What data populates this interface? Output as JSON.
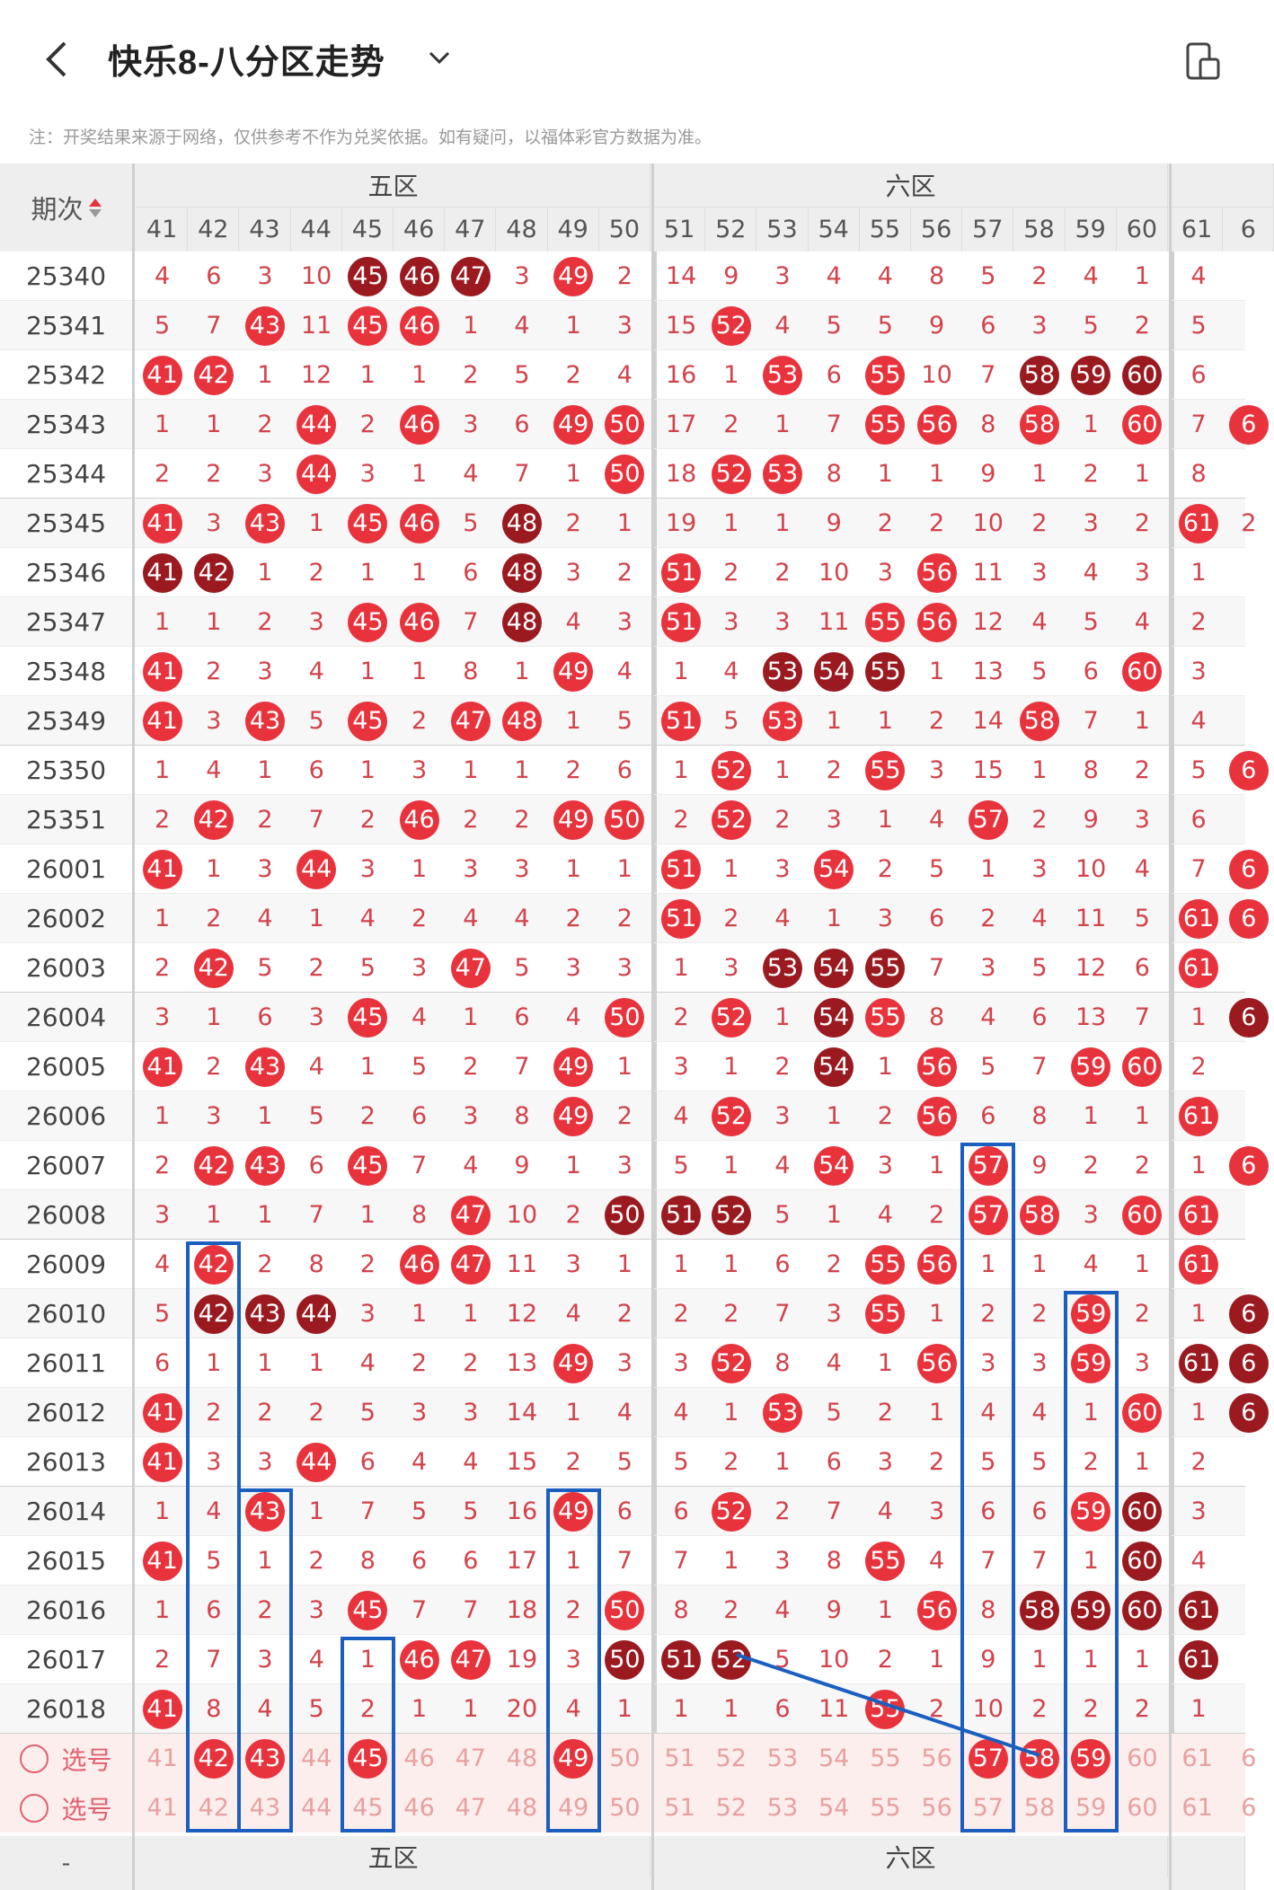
{
  "header": {
    "title": "快乐8-八分区走势"
  },
  "note": "注：开奖结果来源于网络，仅供参考不作为兑奖依据。如有疑问，以福体彩官方数据为准。",
  "table": {
    "period_header": "期次",
    "zones": [
      {
        "name": "五区",
        "cols": [
          "41",
          "42",
          "43",
          "44",
          "45",
          "46",
          "47",
          "48",
          "49",
          "50"
        ]
      },
      {
        "name": "六区",
        "cols": [
          "51",
          "52",
          "53",
          "54",
          "55",
          "56",
          "57",
          "58",
          "59",
          "60"
        ]
      },
      {
        "name": "",
        "cols": [
          "61",
          "6"
        ]
      }
    ],
    "rows": [
      {
        "period": "25340",
        "cells": [
          "4",
          "6",
          "3",
          "10",
          "45H",
          "46H",
          "47H",
          "3",
          "49",
          "2",
          "14",
          "9",
          "3",
          "4",
          "4",
          "8",
          "5",
          "2",
          "4",
          "1",
          "4",
          ""
        ]
      },
      {
        "period": "25341",
        "cells": [
          "5",
          "7",
          "43",
          "11",
          "45",
          "46",
          "1",
          "4",
          "1",
          "3",
          "15",
          "52",
          "4",
          "5",
          "5",
          "9",
          "6",
          "3",
          "5",
          "2",
          "5",
          ""
        ]
      },
      {
        "period": "25342",
        "cells": [
          "41",
          "42",
          "1",
          "12",
          "1",
          "1",
          "2",
          "5",
          "2",
          "4",
          "16",
          "1",
          "53",
          "6",
          "55",
          "10",
          "7",
          "58H",
          "59H",
          "60H",
          "6",
          ""
        ]
      },
      {
        "period": "25343",
        "cells": [
          "1",
          "1",
          "2",
          "44",
          "2",
          "46",
          "3",
          "6",
          "49",
          "50",
          "17",
          "2",
          "1",
          "7",
          "55",
          "56",
          "8",
          "58",
          "1",
          "60",
          "7",
          "X"
        ]
      },
      {
        "period": "25344",
        "cells": [
          "2",
          "2",
          "3",
          "44",
          "3",
          "1",
          "4",
          "7",
          "1",
          "50",
          "18",
          "52",
          "53",
          "8",
          "1",
          "1",
          "9",
          "1",
          "2",
          "1",
          "8",
          ""
        ]
      },
      {
        "period": "25345",
        "cells": [
          "41",
          "3",
          "43",
          "1",
          "45",
          "46",
          "5",
          "48H",
          "2",
          "1",
          "19",
          "1",
          "1",
          "9",
          "2",
          "2",
          "10",
          "2",
          "3",
          "2",
          "61",
          "2"
        ]
      },
      {
        "period": "25346",
        "cells": [
          "41H",
          "42H",
          "1",
          "2",
          "1",
          "1",
          "6",
          "48H",
          "3",
          "2",
          "51",
          "2",
          "2",
          "10",
          "3",
          "56",
          "11",
          "3",
          "4",
          "3",
          "1",
          ""
        ]
      },
      {
        "period": "25347",
        "cells": [
          "1",
          "1",
          "2",
          "3",
          "45",
          "46",
          "7",
          "48H",
          "4",
          "3",
          "51",
          "3",
          "3",
          "11",
          "55",
          "56",
          "12",
          "4",
          "5",
          "4",
          "2",
          ""
        ]
      },
      {
        "period": "25348",
        "cells": [
          "41",
          "2",
          "3",
          "4",
          "1",
          "1",
          "8",
          "1",
          "49",
          "4",
          "1",
          "4",
          "53H",
          "54H",
          "55H",
          "1",
          "13",
          "5",
          "6",
          "60",
          "3",
          ""
        ]
      },
      {
        "period": "25349",
        "cells": [
          "41",
          "3",
          "43",
          "5",
          "45",
          "2",
          "47",
          "48",
          "1",
          "5",
          "51",
          "5",
          "53",
          "1",
          "1",
          "2",
          "14",
          "58",
          "7",
          "1",
          "4",
          ""
        ]
      },
      {
        "period": "25350",
        "cells": [
          "1",
          "4",
          "1",
          "6",
          "1",
          "3",
          "1",
          "1",
          "2",
          "6",
          "1",
          "52",
          "1",
          "2",
          "55",
          "3",
          "15",
          "1",
          "8",
          "2",
          "5",
          "X"
        ]
      },
      {
        "period": "25351",
        "cells": [
          "2",
          "42",
          "2",
          "7",
          "2",
          "46",
          "2",
          "2",
          "49",
          "50",
          "2",
          "52",
          "2",
          "3",
          "1",
          "4",
          "57",
          "2",
          "9",
          "3",
          "6",
          ""
        ]
      },
      {
        "period": "26001",
        "cells": [
          "41",
          "1",
          "3",
          "44",
          "3",
          "1",
          "3",
          "3",
          "1",
          "1",
          "51",
          "1",
          "3",
          "54",
          "2",
          "5",
          "1",
          "3",
          "10",
          "4",
          "7",
          "X"
        ]
      },
      {
        "period": "26002",
        "cells": [
          "1",
          "2",
          "4",
          "1",
          "4",
          "2",
          "4",
          "4",
          "2",
          "2",
          "51",
          "2",
          "4",
          "1",
          "3",
          "6",
          "2",
          "4",
          "11",
          "5",
          "61",
          "X"
        ]
      },
      {
        "period": "26003",
        "cells": [
          "2",
          "42",
          "5",
          "2",
          "5",
          "3",
          "47",
          "5",
          "3",
          "3",
          "1",
          "3",
          "53H",
          "54H",
          "55H",
          "7",
          "3",
          "5",
          "12",
          "6",
          "61",
          ""
        ]
      },
      {
        "period": "26004",
        "cells": [
          "3",
          "1",
          "6",
          "3",
          "45",
          "4",
          "1",
          "6",
          "4",
          "50",
          "2",
          "52",
          "1",
          "54H",
          "55",
          "8",
          "4",
          "6",
          "13",
          "7",
          "1",
          "XH"
        ]
      },
      {
        "period": "26005",
        "cells": [
          "41",
          "2",
          "43",
          "4",
          "1",
          "5",
          "2",
          "7",
          "49",
          "1",
          "3",
          "1",
          "2",
          "54H",
          "1",
          "56",
          "5",
          "7",
          "59",
          "60",
          "2",
          ""
        ]
      },
      {
        "period": "26006",
        "cells": [
          "1",
          "3",
          "1",
          "5",
          "2",
          "6",
          "3",
          "8",
          "49",
          "2",
          "4",
          "52",
          "3",
          "1",
          "2",
          "56",
          "6",
          "8",
          "1",
          "1",
          "61",
          ""
        ]
      },
      {
        "period": "26007",
        "cells": [
          "2",
          "42",
          "43",
          "6",
          "45",
          "7",
          "4",
          "9",
          "1",
          "3",
          "5",
          "1",
          "4",
          "54",
          "3",
          "1",
          "57",
          "9",
          "2",
          "2",
          "1",
          "X"
        ]
      },
      {
        "period": "26008",
        "cells": [
          "3",
          "1",
          "1",
          "7",
          "1",
          "8",
          "47",
          "10",
          "2",
          "50H",
          "51H",
          "52H",
          "5",
          "1",
          "4",
          "2",
          "57",
          "58",
          "3",
          "60",
          "61",
          ""
        ]
      },
      {
        "period": "26009",
        "cells": [
          "4",
          "42",
          "2",
          "8",
          "2",
          "46",
          "47",
          "11",
          "3",
          "1",
          "1",
          "1",
          "6",
          "2",
          "55",
          "56",
          "1",
          "1",
          "4",
          "1",
          "61",
          ""
        ]
      },
      {
        "period": "26010",
        "cells": [
          "5",
          "42H",
          "43H",
          "44H",
          "3",
          "1",
          "1",
          "12",
          "4",
          "2",
          "2",
          "2",
          "7",
          "3",
          "55",
          "1",
          "2",
          "2",
          "59",
          "2",
          "1",
          "XH"
        ]
      },
      {
        "period": "26011",
        "cells": [
          "6",
          "1",
          "1",
          "1",
          "4",
          "2",
          "2",
          "13",
          "49",
          "3",
          "3",
          "52",
          "8",
          "4",
          "1",
          "56",
          "3",
          "3",
          "59",
          "3",
          "61H",
          "XH"
        ]
      },
      {
        "period": "26012",
        "cells": [
          "41",
          "2",
          "2",
          "2",
          "5",
          "3",
          "3",
          "14",
          "1",
          "4",
          "4",
          "1",
          "53",
          "5",
          "2",
          "1",
          "4",
          "4",
          "1",
          "60",
          "1",
          "XH"
        ]
      },
      {
        "period": "26013",
        "cells": [
          "41",
          "3",
          "3",
          "44",
          "6",
          "4",
          "4",
          "15",
          "2",
          "5",
          "5",
          "2",
          "1",
          "6",
          "3",
          "2",
          "5",
          "5",
          "2",
          "1",
          "2",
          ""
        ]
      },
      {
        "period": "26014",
        "cells": [
          "1",
          "4",
          "43",
          "1",
          "7",
          "5",
          "5",
          "16",
          "49",
          "6",
          "6",
          "52",
          "2",
          "7",
          "4",
          "3",
          "6",
          "6",
          "59",
          "60H",
          "3",
          ""
        ]
      },
      {
        "period": "26015",
        "cells": [
          "41",
          "5",
          "1",
          "2",
          "8",
          "6",
          "6",
          "17",
          "1",
          "7",
          "7",
          "1",
          "3",
          "8",
          "55",
          "4",
          "7",
          "7",
          "1",
          "60H",
          "4",
          ""
        ]
      },
      {
        "period": "26016",
        "cells": [
          "1",
          "6",
          "2",
          "3",
          "45",
          "7",
          "7",
          "18",
          "2",
          "50",
          "8",
          "2",
          "4",
          "9",
          "1",
          "56",
          "8",
          "58H",
          "59H",
          "60H",
          "61H",
          ""
        ]
      },
      {
        "period": "26017",
        "cells": [
          "2",
          "7",
          "3",
          "4",
          "1",
          "46",
          "47",
          "19",
          "3",
          "50H",
          "51H",
          "52H",
          "5",
          "10",
          "2",
          "1",
          "9",
          "1",
          "1",
          "1",
          "61H",
          ""
        ]
      },
      {
        "period": "26018",
        "cells": [
          "41",
          "8",
          "4",
          "5",
          "2",
          "1",
          "1",
          "20",
          "4",
          "1",
          "1",
          "1",
          "6",
          "11",
          "55",
          "2",
          "10",
          "2",
          "2",
          "2",
          "1",
          ""
        ]
      }
    ],
    "select_rows": [
      {
        "label": "选号",
        "picked": [
          "42",
          "43",
          "45",
          "49",
          "57",
          "58",
          "59"
        ]
      },
      {
        "label": "选号",
        "picked": []
      }
    ],
    "footer_zones": [
      "五区",
      "六区"
    ],
    "footer_period": "-"
  },
  "colors": {
    "hit": "#e8333d",
    "hot": "#9a1a20",
    "number": "#d2434b",
    "box": "#1a5fc0"
  },
  "icons": [
    "back-arrow-icon",
    "chevron-down-icon",
    "tablet-icon",
    "sort-arrows-icon",
    "radio-icon"
  ]
}
